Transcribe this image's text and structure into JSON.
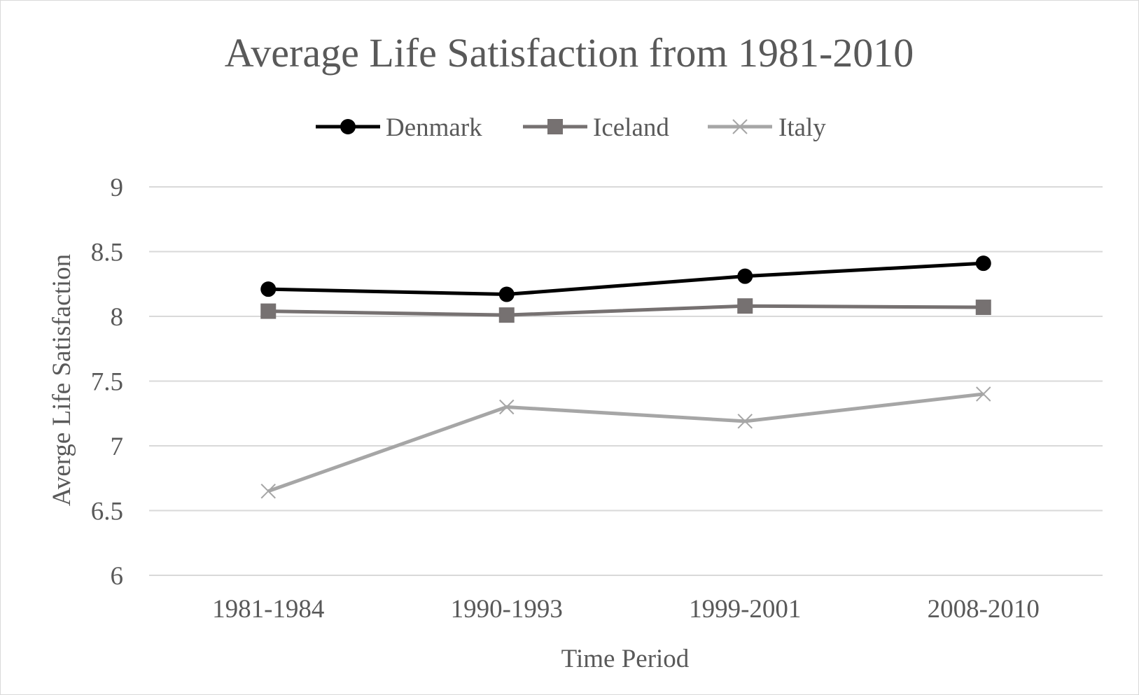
{
  "chart_data": {
    "type": "line",
    "title": "Average Life Satisfaction from 1981-2010",
    "xlabel": "Time Period",
    "ylabel": "Averge Life Satisfaction",
    "categories": [
      "1981-1984",
      "1990-1993",
      "1999-2001",
      "2008-2010"
    ],
    "ylim": [
      6,
      9
    ],
    "yticks": [
      "6",
      "6.5",
      "7",
      "7.5",
      "8",
      "8.5",
      "9"
    ],
    "grid": true,
    "legend_position": "top",
    "series": [
      {
        "name": "Denmark",
        "values": [
          8.21,
          8.17,
          8.31,
          8.41
        ],
        "color": "#000000",
        "marker": "circle"
      },
      {
        "name": "Iceland",
        "values": [
          8.04,
          8.01,
          8.08,
          8.07
        ],
        "color": "#767171",
        "marker": "square"
      },
      {
        "name": "Italy",
        "values": [
          6.65,
          7.3,
          7.19,
          7.4
        ],
        "color": "#a6a6a6",
        "marker": "x"
      }
    ]
  }
}
